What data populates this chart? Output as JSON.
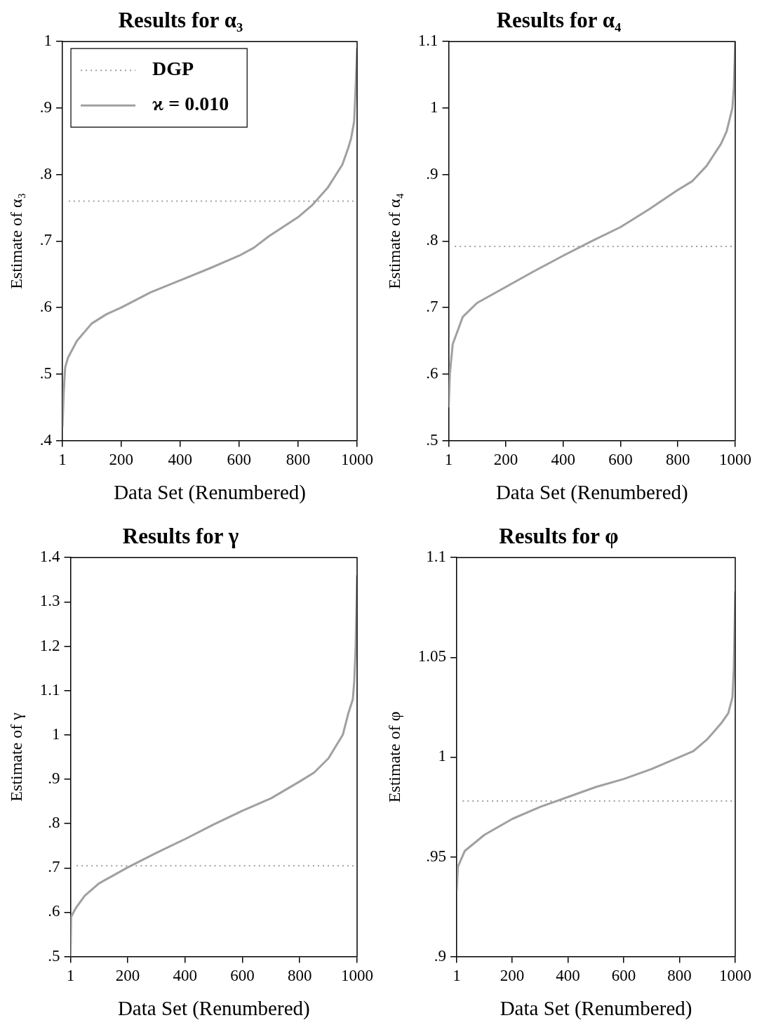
{
  "chart_data": [
    {
      "type": "line",
      "title": "Results for α₃",
      "xlabel": "Data Set (Renumbered)",
      "ylabel": "Estimate of α₃",
      "xlim": [
        1,
        1000
      ],
      "xticks": [
        1,
        200,
        400,
        600,
        800,
        1000
      ],
      "ylim": [
        0.4,
        1
      ],
      "yticks": [
        {
          "value": 0.4,
          "label": ".4"
        },
        {
          "value": 0.5,
          "label": ".5"
        },
        {
          "value": 0.6,
          "label": ".6"
        },
        {
          "value": 0.7,
          "label": ".7"
        },
        {
          "value": 0.8,
          "label": ".8"
        },
        {
          "value": 0.9,
          "label": ".9"
        },
        1
      ],
      "grid": false,
      "legend": "top left",
      "marker": "none",
      "series": [
        {
          "name": "DGP",
          "color": "#a0a0a0",
          "line_style": "dotted",
          "x": [
            22,
            988
          ],
          "values": [
            0.76,
            0.76
          ]
        },
        {
          "name": "ϰ = 0.010",
          "color": "#a0a0a0",
          "line_style": "solid",
          "x": [
            1,
            5,
            10,
            20,
            50,
            100,
            150,
            200,
            300,
            400,
            500,
            600,
            650,
            700,
            800,
            850,
            900,
            950,
            970,
            980,
            990,
            995,
            1000
          ],
          "values": [
            0.42,
            0.47,
            0.51,
            0.525,
            0.55,
            0.576,
            0.59,
            0.6,
            0.623,
            0.641,
            0.659,
            0.678,
            0.69,
            0.707,
            0.736,
            0.755,
            0.78,
            0.815,
            0.84,
            0.855,
            0.88,
            0.93,
            0.99
          ]
        }
      ]
    },
    {
      "type": "line",
      "title": "Results for α₄",
      "xlabel": "Data Set (Renumbered)",
      "ylabel": "Estimate of α₄",
      "xlim": [
        1,
        1000
      ],
      "xticks": [
        1,
        200,
        400,
        600,
        800,
        1000
      ],
      "ylim": [
        0.5,
        1.1
      ],
      "yticks": [
        {
          "value": 0.5,
          "label": ".5"
        },
        {
          "value": 0.6,
          "label": ".6"
        },
        {
          "value": 0.7,
          "label": ".7"
        },
        {
          "value": 0.8,
          "label": ".8"
        },
        {
          "value": 0.9,
          "label": ".9"
        },
        1,
        1.1
      ],
      "grid": false,
      "marker": "none",
      "series": [
        {
          "color": "#a0a0a0",
          "line_style": "dotted",
          "x": [
            22,
            988
          ],
          "values": [
            0.792,
            0.792
          ]
        },
        {
          "color": "#a0a0a0",
          "line_style": "solid",
          "x": [
            1,
            5,
            15,
            50,
            100,
            200,
            300,
            400,
            500,
            600,
            700,
            800,
            850,
            900,
            950,
            970,
            990,
            995,
            1000
          ],
          "values": [
            0.55,
            0.6,
            0.645,
            0.686,
            0.707,
            0.731,
            0.755,
            0.778,
            0.8,
            0.821,
            0.848,
            0.877,
            0.89,
            0.913,
            0.946,
            0.965,
            1.0,
            1.03,
            1.1
          ]
        }
      ]
    },
    {
      "type": "line",
      "title": "Results for γ",
      "xlabel": "Data Set (Renumbered)",
      "ylabel": "Estimate of γ",
      "xlim": [
        1,
        1000
      ],
      "xticks": [
        1,
        200,
        400,
        600,
        800,
        1000
      ],
      "ylim": [
        0.5,
        1.4
      ],
      "yticks": [
        {
          "value": 0.5,
          "label": ".5"
        },
        {
          "value": 0.6,
          "label": ".6"
        },
        {
          "value": 0.7,
          "label": ".7"
        },
        {
          "value": 0.8,
          "label": ".8"
        },
        {
          "value": 0.9,
          "label": ".9"
        },
        1,
        1.1,
        1.2,
        1.3,
        1.4
      ],
      "grid": false,
      "marker": "none",
      "series": [
        {
          "color": "#a0a0a0",
          "line_style": "dotted",
          "x": [
            22,
            988
          ],
          "values": [
            0.705,
            0.705
          ]
        },
        {
          "color": "#a0a0a0",
          "line_style": "solid",
          "x": [
            1,
            3,
            20,
            50,
            100,
            200,
            300,
            400,
            500,
            600,
            700,
            800,
            850,
            900,
            950,
            970,
            985,
            990,
            995,
            1000
          ],
          "values": [
            0.5,
            0.59,
            0.61,
            0.637,
            0.665,
            0.701,
            0.734,
            0.765,
            0.798,
            0.829,
            0.857,
            0.895,
            0.915,
            0.947,
            1.0,
            1.05,
            1.08,
            1.12,
            1.2,
            1.36
          ]
        }
      ]
    },
    {
      "type": "line",
      "title": "Results for φ",
      "xlabel": "Data Set (Renumbered)",
      "ylabel": "Estimate of φ",
      "xlim": [
        1,
        1000
      ],
      "xticks": [
        1,
        200,
        400,
        600,
        800,
        1000
      ],
      "ylim": [
        0.9,
        1.1
      ],
      "yticks": [
        {
          "value": 0.9,
          "label": ".9"
        },
        {
          "value": 0.95,
          "label": ".95"
        },
        1,
        1.05,
        1.1
      ],
      "grid": false,
      "marker": "none",
      "series": [
        {
          "color": "#a0a0a0",
          "line_style": "dotted",
          "x": [
            22,
            988
          ],
          "values": [
            0.978,
            0.978
          ]
        },
        {
          "color": "#a0a0a0",
          "line_style": "solid",
          "x": [
            1,
            5,
            30,
            100,
            200,
            300,
            400,
            500,
            600,
            700,
            800,
            850,
            900,
            950,
            975,
            990,
            995,
            1000
          ],
          "values": [
            0.933,
            0.945,
            0.953,
            0.961,
            0.969,
            0.975,
            0.98,
            0.985,
            0.989,
            0.994,
            1.0,
            1.003,
            1.009,
            1.017,
            1.022,
            1.03,
            1.045,
            1.083
          ]
        }
      ]
    }
  ]
}
